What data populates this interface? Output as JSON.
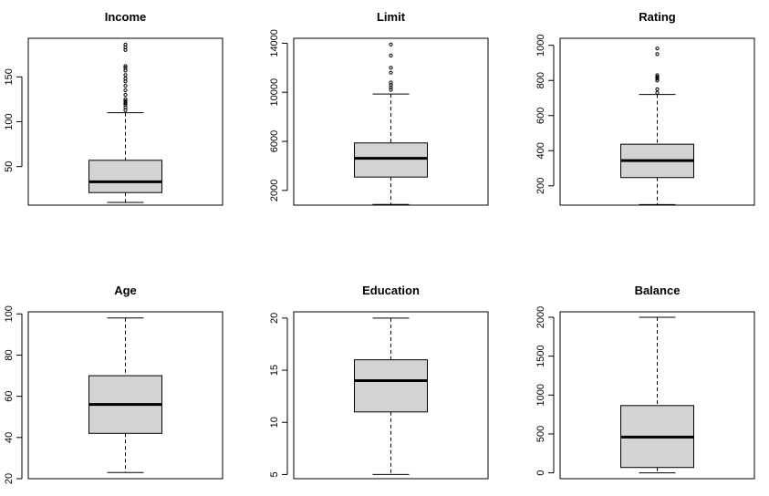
{
  "chart_data": [
    {
      "type": "boxplot",
      "title": "Income",
      "ylim": [
        7,
        193
      ],
      "yticks": [
        50,
        100,
        150
      ],
      "box": {
        "whisker_low": 10,
        "q1": 21,
        "median": 33,
        "q3": 57,
        "whisker_high": 110
      },
      "outliers": [
        113,
        116,
        119,
        121,
        123,
        125,
        130,
        135,
        140,
        145,
        148,
        152,
        157,
        160,
        162,
        180,
        183,
        186
      ]
    },
    {
      "type": "boxplot",
      "title": "Limit",
      "ylim": [
        800,
        14400
      ],
      "yticks": [
        2000,
        6000,
        10000,
        14000
      ],
      "box": {
        "whisker_low": 860,
        "q1": 3090,
        "median": 4620,
        "q3": 5870,
        "whisker_high": 9860
      },
      "outliers": [
        10200,
        10400,
        10600,
        10800,
        11600,
        12000,
        13000,
        13900
      ]
    },
    {
      "type": "boxplot",
      "title": "Rating",
      "ylim": [
        90,
        1040
      ],
      "yticks": [
        200,
        400,
        600,
        800,
        1000
      ],
      "box": {
        "whisker_low": 93,
        "q1": 247,
        "median": 344,
        "q3": 437,
        "whisker_high": 720
      },
      "outliers": [
        730,
        750,
        800,
        810,
        820,
        830,
        950,
        982
      ]
    },
    {
      "type": "boxplot",
      "title": "Age",
      "ylim": [
        20,
        101
      ],
      "yticks": [
        20,
        40,
        60,
        80,
        100
      ],
      "box": {
        "whisker_low": 23,
        "q1": 42,
        "median": 56,
        "q3": 70,
        "whisker_high": 98
      },
      "outliers": []
    },
    {
      "type": "boxplot",
      "title": "Education",
      "ylim": [
        4.6,
        20.6
      ],
      "yticks": [
        5,
        10,
        15,
        20
      ],
      "box": {
        "whisker_low": 5,
        "q1": 11,
        "median": 14,
        "q3": 16,
        "whisker_high": 20
      },
      "outliers": []
    },
    {
      "type": "boxplot",
      "title": "Balance",
      "ylim": [
        -75,
        2070
      ],
      "yticks": [
        0,
        500,
        1000,
        1500,
        2000
      ],
      "box": {
        "whisker_low": 0,
        "q1": 69,
        "median": 460,
        "q3": 865,
        "whisker_high": 1999
      },
      "outliers": []
    }
  ],
  "colors": {
    "box_fill": "#d3d3d3",
    "line": "#000000",
    "background": "#ffffff"
  }
}
